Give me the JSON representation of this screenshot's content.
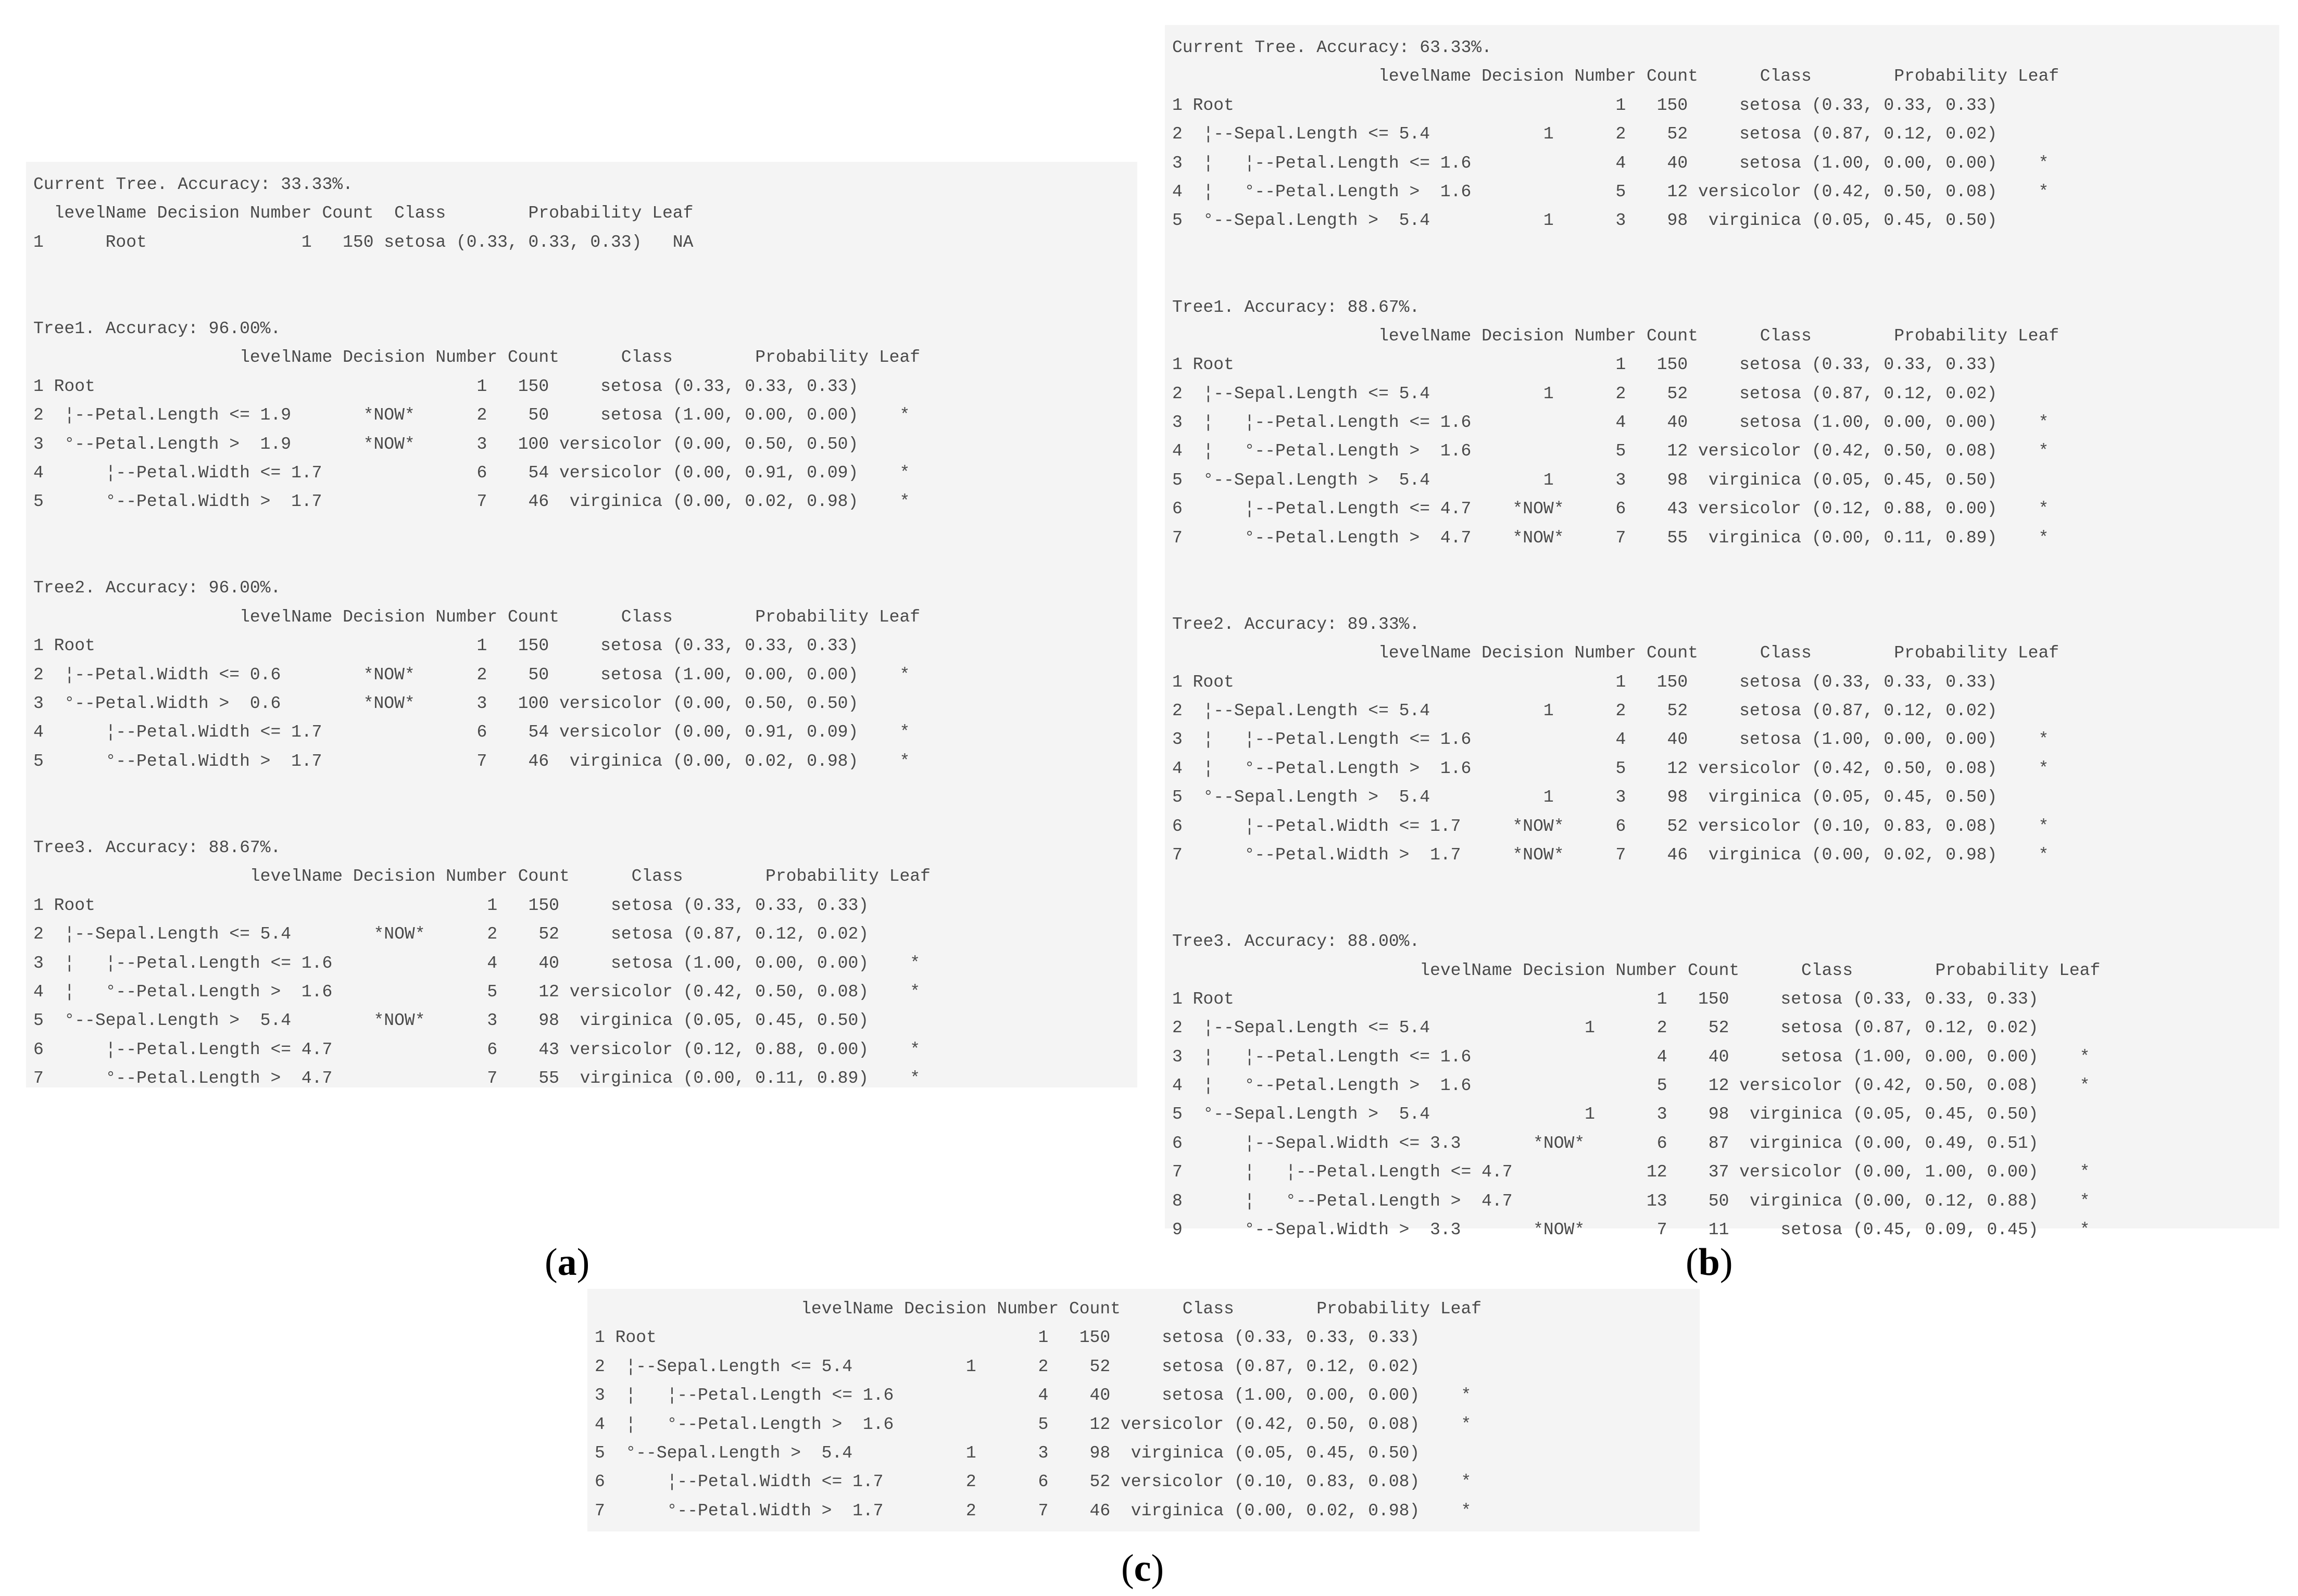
{
  "panel_a": {
    "lines": [
      "Current Tree. Accuracy: 33.33%.",
      "  levelName Decision Number Count  Class        Probability Leaf",
      "1      Root               1   150 setosa (0.33, 0.33, 0.33)   NA",
      "",
      "",
      "Tree1. Accuracy: 96.00%.",
      "                    levelName Decision Number Count      Class        Probability Leaf",
      "1 Root                                     1   150     setosa (0.33, 0.33, 0.33)",
      "2  ¦--Petal.Length <= 1.9       *NOW*      2    50     setosa (1.00, 0.00, 0.00)    *",
      "3  °--Petal.Length >  1.9       *NOW*      3   100 versicolor (0.00, 0.50, 0.50)",
      "4      ¦--Petal.Width <= 1.7               6    54 versicolor (0.00, 0.91, 0.09)    *",
      "5      °--Petal.Width >  1.7               7    46  virginica (0.00, 0.02, 0.98)    *",
      "",
      "",
      "Tree2. Accuracy: 96.00%.",
      "                    levelName Decision Number Count      Class        Probability Leaf",
      "1 Root                                     1   150     setosa (0.33, 0.33, 0.33)",
      "2  ¦--Petal.Width <= 0.6        *NOW*      2    50     setosa (1.00, 0.00, 0.00)    *",
      "3  °--Petal.Width >  0.6        *NOW*      3   100 versicolor (0.00, 0.50, 0.50)",
      "4      ¦--Petal.Width <= 1.7               6    54 versicolor (0.00, 0.91, 0.09)    *",
      "5      °--Petal.Width >  1.7               7    46  virginica (0.00, 0.02, 0.98)    *",
      "",
      "",
      "Tree3. Accuracy: 88.67%.",
      "                     levelName Decision Number Count      Class        Probability Leaf",
      "1 Root                                      1   150     setosa (0.33, 0.33, 0.33)",
      "2  ¦--Sepal.Length <= 5.4        *NOW*      2    52     setosa (0.87, 0.12, 0.02)",
      "3  ¦   ¦--Petal.Length <= 1.6               4    40     setosa (1.00, 0.00, 0.00)    *",
      "4  ¦   °--Petal.Length >  1.6               5    12 versicolor (0.42, 0.50, 0.08)    *",
      "5  °--Sepal.Length >  5.4        *NOW*      3    98  virginica (0.05, 0.45, 0.50)",
      "6      ¦--Petal.Length <= 4.7               6    43 versicolor (0.12, 0.88, 0.00)    *",
      "7      °--Petal.Length >  4.7               7    55  virginica (0.00, 0.11, 0.89)    *"
    ]
  },
  "panel_b": {
    "lines": [
      "Current Tree. Accuracy: 63.33%.",
      "                    levelName Decision Number Count      Class        Probability Leaf",
      "1 Root                                     1   150     setosa (0.33, 0.33, 0.33)",
      "2  ¦--Sepal.Length <= 5.4           1      2    52     setosa (0.87, 0.12, 0.02)",
      "3  ¦   ¦--Petal.Length <= 1.6              4    40     setosa (1.00, 0.00, 0.00)    *",
      "4  ¦   °--Petal.Length >  1.6              5    12 versicolor (0.42, 0.50, 0.08)    *",
      "5  °--Sepal.Length >  5.4           1      3    98  virginica (0.05, 0.45, 0.50)",
      "",
      "",
      "Tree1. Accuracy: 88.67%.",
      "                    levelName Decision Number Count      Class        Probability Leaf",
      "1 Root                                     1   150     setosa (0.33, 0.33, 0.33)",
      "2  ¦--Sepal.Length <= 5.4           1      2    52     setosa (0.87, 0.12, 0.02)",
      "3  ¦   ¦--Petal.Length <= 1.6              4    40     setosa (1.00, 0.00, 0.00)    *",
      "4  ¦   °--Petal.Length >  1.6              5    12 versicolor (0.42, 0.50, 0.08)    *",
      "5  °--Sepal.Length >  5.4           1      3    98  virginica (0.05, 0.45, 0.50)",
      "6      ¦--Petal.Length <= 4.7    *NOW*     6    43 versicolor (0.12, 0.88, 0.00)    *",
      "7      °--Petal.Length >  4.7    *NOW*     7    55  virginica (0.00, 0.11, 0.89)    *",
      "",
      "",
      "Tree2. Accuracy: 89.33%.",
      "                    levelName Decision Number Count      Class        Probability Leaf",
      "1 Root                                     1   150     setosa (0.33, 0.33, 0.33)",
      "2  ¦--Sepal.Length <= 5.4           1      2    52     setosa (0.87, 0.12, 0.02)",
      "3  ¦   ¦--Petal.Length <= 1.6              4    40     setosa (1.00, 0.00, 0.00)    *",
      "4  ¦   °--Petal.Length >  1.6              5    12 versicolor (0.42, 0.50, 0.08)    *",
      "5  °--Sepal.Length >  5.4           1      3    98  virginica (0.05, 0.45, 0.50)",
      "6      ¦--Petal.Width <= 1.7     *NOW*     6    52 versicolor (0.10, 0.83, 0.08)    *",
      "7      °--Petal.Width >  1.7     *NOW*     7    46  virginica (0.00, 0.02, 0.98)    *",
      "",
      "",
      "Tree3. Accuracy: 88.00%.",
      "                        levelName Decision Number Count      Class        Probability Leaf",
      "1 Root                                         1   150     setosa (0.33, 0.33, 0.33)",
      "2  ¦--Sepal.Length <= 5.4               1      2    52     setosa (0.87, 0.12, 0.02)",
      "3  ¦   ¦--Petal.Length <= 1.6                  4    40     setosa (1.00, 0.00, 0.00)    *",
      "4  ¦   °--Petal.Length >  1.6                  5    12 versicolor (0.42, 0.50, 0.08)    *",
      "5  °--Sepal.Length >  5.4               1      3    98  virginica (0.05, 0.45, 0.50)",
      "6      ¦--Sepal.Width <= 3.3       *NOW*       6    87  virginica (0.00, 0.49, 0.51)",
      "7      ¦   ¦--Petal.Length <= 4.7             12    37 versicolor (0.00, 1.00, 0.00)    *",
      "8      ¦   °--Petal.Length >  4.7             13    50  virginica (0.00, 0.12, 0.88)    *",
      "9      °--Sepal.Width >  3.3       *NOW*       7    11     setosa (0.45, 0.09, 0.45)    *"
    ]
  },
  "panel_c": {
    "lines": [
      "                    levelName Decision Number Count      Class        Probability Leaf",
      "1 Root                                     1   150     setosa (0.33, 0.33, 0.33)",
      "2  ¦--Sepal.Length <= 5.4           1      2    52     setosa (0.87, 0.12, 0.02)",
      "3  ¦   ¦--Petal.Length <= 1.6              4    40     setosa (1.00, 0.00, 0.00)    *",
      "4  ¦   °--Petal.Length >  1.6              5    12 versicolor (0.42, 0.50, 0.08)    *",
      "5  °--Sepal.Length >  5.4           1      3    98  virginica (0.05, 0.45, 0.50)",
      "6      ¦--Petal.Width <= 1.7        2      6    52 versicolor (0.10, 0.83, 0.08)    *",
      "7      °--Petal.Width >  1.7        2      7    46  virginica (0.00, 0.02, 0.98)    *"
    ]
  },
  "captions": {
    "a": "a",
    "b": "b",
    "c": "c"
  }
}
